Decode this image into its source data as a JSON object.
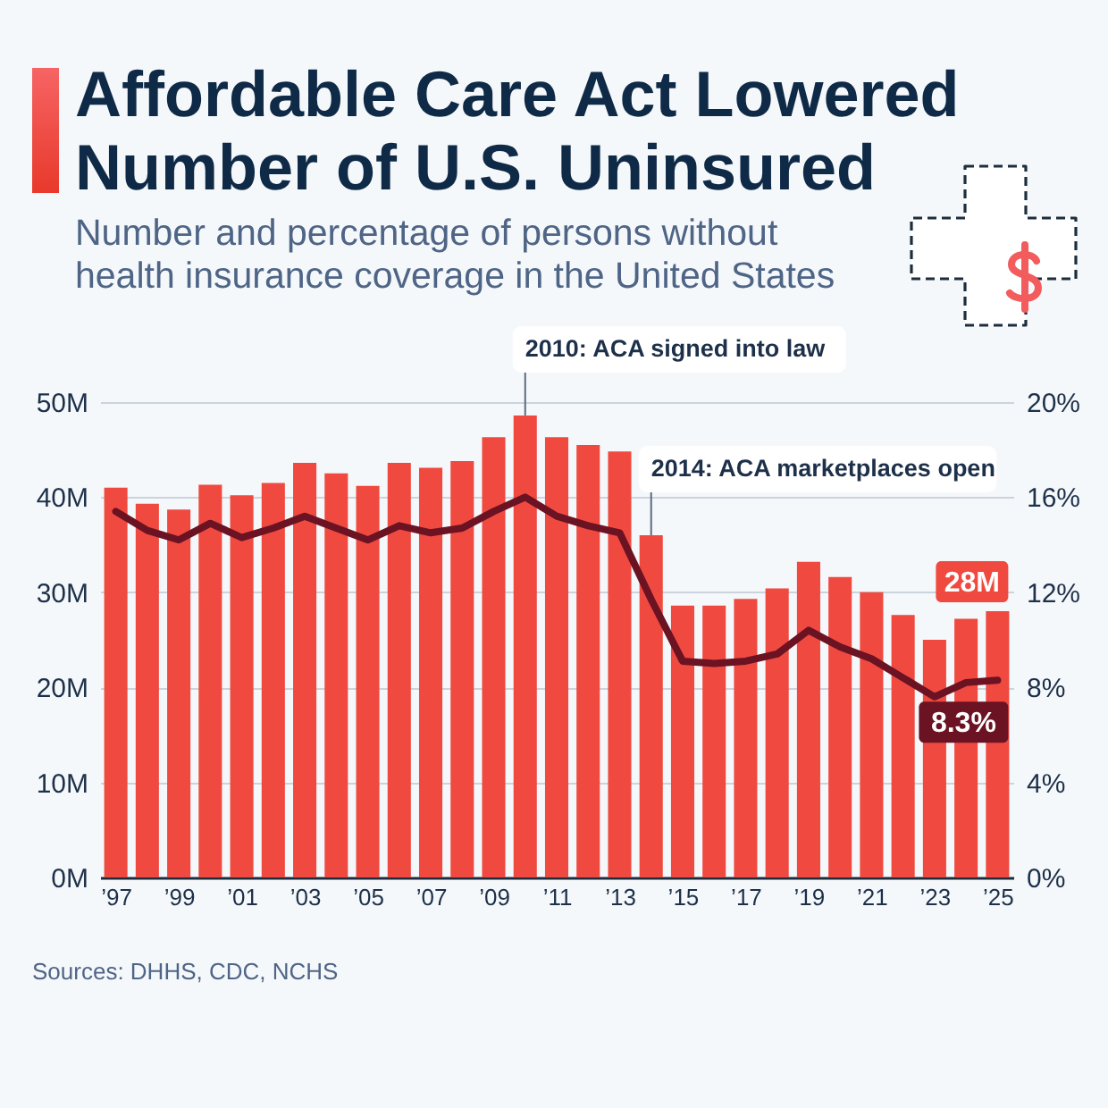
{
  "chart_data": {
    "type": "bar",
    "title": "Affordable Care Act Lowered Number of U.S. Uninsured",
    "subtitle": "Number and percentage of persons without health insurance coverage in the United States",
    "x": [
      1997,
      1998,
      1999,
      2000,
      2001,
      2002,
      2003,
      2004,
      2005,
      2006,
      2007,
      2008,
      2009,
      2010,
      2011,
      2012,
      2013,
      2014,
      2015,
      2016,
      2017,
      2018,
      2019,
      2020,
      2021,
      2022,
      2023,
      2024,
      2025
    ],
    "xlim": [
      1996.5,
      2025.5
    ],
    "xticks": [
      {
        "value": 1997,
        "label": "’97"
      },
      {
        "value": 1999,
        "label": "’99"
      },
      {
        "value": 2001,
        "label": "’01"
      },
      {
        "value": 2003,
        "label": "’03"
      },
      {
        "value": 2005,
        "label": "’05"
      },
      {
        "value": 2007,
        "label": "’07"
      },
      {
        "value": 2009,
        "label": "’09"
      },
      {
        "value": 2011,
        "label": "’11"
      },
      {
        "value": 2013,
        "label": "’13"
      },
      {
        "value": 2015,
        "label": "’15"
      },
      {
        "value": 2017,
        "label": "’17"
      },
      {
        "value": 2019,
        "label": "’19"
      },
      {
        "value": 2021,
        "label": "’21"
      },
      {
        "value": 2023,
        "label": "’23"
      },
      {
        "value": 2025,
        "label": "’25"
      }
    ],
    "ylim": [
      0,
      50
    ],
    "yticks": [
      {
        "value": 0,
        "label": "0M"
      },
      {
        "value": 10,
        "label": "10M"
      },
      {
        "value": 20,
        "label": "20M"
      },
      {
        "value": 30,
        "label": "30M"
      },
      {
        "value": 40,
        "label": "40M"
      },
      {
        "value": 50,
        "label": "50M"
      }
    ],
    "y2lim": [
      0,
      20
    ],
    "y2ticks": [
      {
        "value": 0,
        "label": "0%"
      },
      {
        "value": 4,
        "label": "4%"
      },
      {
        "value": 8,
        "label": "8%"
      },
      {
        "value": 12,
        "label": "12%"
      },
      {
        "value": 16,
        "label": "16%"
      },
      {
        "value": 20,
        "label": "20%"
      }
    ],
    "grid": "y",
    "series": [
      {
        "color": "#f04a40",
        "values": [
          41.0,
          39.3,
          38.7,
          41.3,
          40.2,
          41.5,
          43.6,
          42.5,
          41.2,
          43.6,
          43.1,
          43.8,
          46.3,
          48.6,
          46.3,
          45.5,
          44.8,
          36.0,
          28.6,
          28.6,
          29.3,
          30.4,
          33.2,
          31.6,
          30.0,
          27.6,
          25.0,
          27.2,
          28
        ],
        "value_labels": [
          null,
          null,
          null,
          null,
          null,
          null,
          null,
          null,
          null,
          null,
          null,
          null,
          null,
          null,
          null,
          null,
          null,
          null,
          null,
          null,
          null,
          null,
          null,
          null,
          null,
          null,
          null,
          null,
          "28M"
        ]
      },
      {
        "type": "line",
        "axis": "y2",
        "color": "#6b1323",
        "values": [
          15.4,
          14.6,
          14.2,
          14.9,
          14.3,
          14.7,
          15.2,
          14.7,
          14.2,
          14.8,
          14.5,
          14.7,
          15.4,
          16.0,
          15.2,
          14.8,
          14.5,
          11.7,
          9.1,
          9.0,
          9.1,
          9.4,
          10.4,
          9.7,
          9.2,
          8.4,
          7.6,
          8.2,
          8.3
        ],
        "value_labels": [
          null,
          null,
          null,
          null,
          null,
          null,
          null,
          null,
          null,
          null,
          null,
          null,
          null,
          null,
          null,
          null,
          null,
          null,
          null,
          null,
          null,
          null,
          null,
          null,
          null,
          null,
          null,
          null,
          "8.3%"
        ]
      }
    ],
    "annotations": [
      {
        "text": "2010: ACA signed into law",
        "x": 2010,
        "y": 48.6
      },
      {
        "text": "2014: ACA marketplaces open",
        "x": 2014,
        "y": 36.0
      },
      "Sources: DHHS, CDC, NCHS"
    ]
  }
}
